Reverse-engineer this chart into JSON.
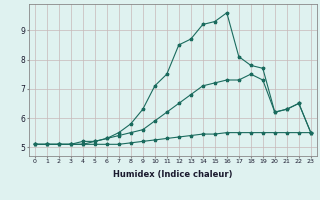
{
  "xlabel": "Humidex (Indice chaleur)",
  "x": [
    0,
    1,
    2,
    3,
    4,
    5,
    6,
    7,
    8,
    9,
    10,
    11,
    12,
    13,
    14,
    15,
    16,
    17,
    18,
    19,
    20,
    21,
    22,
    23
  ],
  "line1": [
    5.1,
    5.1,
    5.1,
    5.1,
    5.1,
    5.1,
    5.1,
    5.1,
    5.15,
    5.2,
    5.25,
    5.3,
    5.35,
    5.4,
    5.45,
    5.45,
    5.5,
    5.5,
    5.5,
    5.5,
    5.5,
    5.5,
    5.5,
    5.5
  ],
  "line2": [
    5.1,
    5.1,
    5.1,
    5.1,
    5.1,
    5.2,
    5.3,
    5.4,
    5.5,
    5.6,
    5.9,
    6.2,
    6.5,
    6.8,
    7.1,
    7.2,
    7.3,
    7.3,
    7.5,
    7.3,
    6.2,
    6.3,
    6.5,
    5.5
  ],
  "line3": [
    5.1,
    5.1,
    5.1,
    5.1,
    5.2,
    5.2,
    5.3,
    5.5,
    5.8,
    6.3,
    7.1,
    7.5,
    8.5,
    8.7,
    9.2,
    9.3,
    9.6,
    8.1,
    7.8,
    7.7,
    6.2,
    6.3,
    6.5,
    5.5
  ],
  "color": "#1a6b5e",
  "bg_color": "#dff2f0",
  "grid_color": "#c8b8b8",
  "ylim": [
    4.7,
    9.9
  ],
  "xlim": [
    -0.5,
    23.5
  ],
  "yticks": [
    5,
    6,
    7,
    8,
    9
  ],
  "xticks": [
    0,
    1,
    2,
    3,
    4,
    5,
    6,
    7,
    8,
    9,
    10,
    11,
    12,
    13,
    14,
    15,
    16,
    17,
    18,
    19,
    20,
    21,
    22,
    23
  ]
}
